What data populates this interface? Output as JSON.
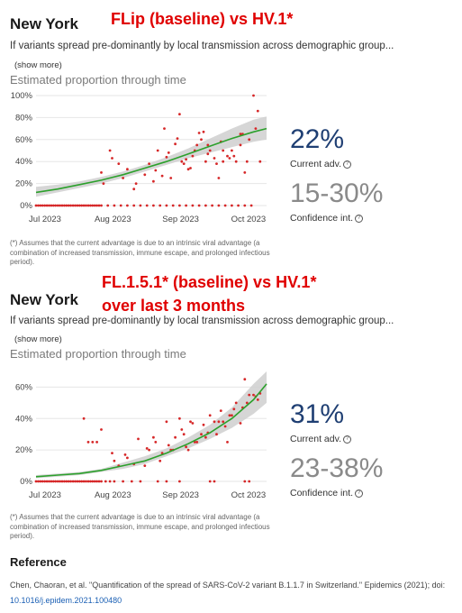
{
  "panels": [
    {
      "location": "New York",
      "overlay_title": "FLip (baseline) vs HV.1*",
      "description": "If variants spread pre-dominantly by local transmission across demographic group...",
      "show_more": "(show more)",
      "section_title": "Estimated proportion through time",
      "current_adv_value": "22%",
      "current_adv_label": "Current adv.",
      "confidence_value": "15-30%",
      "confidence_label": "Confidence int.",
      "info_icon": "?",
      "footnote": "(*) Assumes that the current advantage is due to an intrinsic viral advantage (a combination of increased transmission, immune escape, and prolonged infectious period)."
    },
    {
      "location": "New York",
      "overlay_title_lines": [
        "FL.1.5.1* (baseline) vs HV.1*",
        "over last 3 months"
      ],
      "description": "If variants spread pre-dominantly by local transmission across demographic group...",
      "show_more": "(show more)",
      "section_title": "Estimated proportion through time",
      "current_adv_value": "31%",
      "current_adv_label": "Current adv.",
      "confidence_value": "23-38%",
      "confidence_label": "Confidence int.",
      "info_icon": "?",
      "footnote": "(*) Assumes that the current advantage is due to an intrinsic viral advantage (a combination of increased transmission, immune escape, and prolonged infectious period)."
    }
  ],
  "reference": {
    "heading": "Reference",
    "citation": "Chen, Chaoran, et al. \"Quantification of the spread of SARS-CoV-2 variant B.1.1.7 in Switzerland.\" Epidemics (2021); doi:",
    "doi": "10.1016/j.epidem.2021.100480"
  },
  "colors": {
    "fit_line": "#2ca02c",
    "band": "#cfcfcf",
    "points": "#d62728",
    "adv_value": "#1f3f73",
    "conf_value": "#8a8a8a",
    "overlay_text": "#e00000"
  },
  "chart_data": [
    {
      "type": "scatter",
      "title": "Estimated proportion through time",
      "x_ticks": [
        "Jul 2023",
        "Aug 2023",
        "Sep 2023",
        "Oct 2023"
      ],
      "x_domain": [
        0,
        106
      ],
      "y_ticks": [
        "0%",
        "20%",
        "40%",
        "60%",
        "80%",
        "100%"
      ],
      "ylim": [
        0,
        1
      ],
      "grid": true,
      "fit": {
        "x": [
          0,
          10,
          20,
          30,
          40,
          50,
          60,
          70,
          80,
          90,
          100,
          106
        ],
        "y": [
          0.12,
          0.15,
          0.19,
          0.23,
          0.28,
          0.34,
          0.4,
          0.47,
          0.54,
          0.61,
          0.67,
          0.7
        ],
        "lower": [
          0.08,
          0.12,
          0.16,
          0.2,
          0.25,
          0.31,
          0.37,
          0.43,
          0.48,
          0.53,
          0.58,
          0.6
        ],
        "upper": [
          0.17,
          0.19,
          0.22,
          0.26,
          0.31,
          0.37,
          0.44,
          0.52,
          0.61,
          0.7,
          0.78,
          0.81
        ]
      },
      "points": {
        "x": [
          0,
          1,
          2,
          3,
          4,
          5,
          6,
          7,
          8,
          9,
          10,
          11,
          12,
          13,
          14,
          15,
          16,
          17,
          18,
          19,
          20,
          21,
          22,
          23,
          24,
          25,
          26,
          27,
          28,
          29,
          30,
          33,
          36,
          39,
          42,
          45,
          48,
          51,
          54,
          57,
          60,
          63,
          66,
          69,
          72,
          75,
          78,
          81,
          84,
          87,
          90,
          93,
          96,
          99,
          30,
          34,
          38,
          42,
          46,
          50,
          54,
          56,
          60,
          62,
          64,
          66,
          68,
          70,
          72,
          74,
          76,
          78,
          80,
          82,
          84,
          86,
          88,
          90,
          92,
          94,
          96,
          98,
          100,
          102,
          31,
          35,
          40,
          45,
          55,
          58,
          65,
          67,
          71,
          73,
          77,
          79,
          83,
          85,
          89,
          91,
          95,
          97,
          101,
          103,
          52,
          59,
          61,
          69,
          75,
          79,
          86,
          94
        ],
        "y": [
          0,
          0,
          0,
          0,
          0,
          0,
          0,
          0,
          0,
          0,
          0,
          0,
          0,
          0,
          0,
          0,
          0,
          0,
          0,
          0,
          0,
          0,
          0,
          0,
          0,
          0,
          0,
          0,
          0,
          0,
          0,
          0,
          0,
          0,
          0,
          0,
          0,
          0,
          0,
          0,
          0,
          0,
          0,
          0,
          0,
          0,
          0,
          0,
          0,
          0,
          0,
          0,
          0,
          0,
          0.3,
          0.5,
          0.38,
          0.33,
          0.2,
          0.28,
          0.22,
          0.5,
          0.44,
          0.25,
          0.56,
          0.83,
          0.38,
          0.33,
          0.45,
          0.55,
          0.6,
          0.4,
          0.5,
          0.43,
          0.25,
          0.4,
          0.45,
          0.5,
          0.4,
          0.55,
          0.3,
          0.6,
          1.0,
          0.86,
          0.2,
          0.43,
          0.25,
          0.15,
          0.32,
          0.27,
          0.61,
          0.4,
          0.34,
          0.5,
          0.67,
          0.47,
          0.38,
          0.58,
          0.43,
          0.45,
          0.65,
          0.4,
          0.7,
          0.4,
          0.38,
          0.7,
          0.48,
          0.42,
          0.66,
          0.55,
          0.5,
          0.65
        ]
      }
    },
    {
      "type": "scatter",
      "title": "Estimated proportion through time",
      "x_ticks": [
        "Jul 2023",
        "Aug 2023",
        "Sep 2023",
        "Oct 2023"
      ],
      "x_domain": [
        0,
        106
      ],
      "y_ticks": [
        "0%",
        "20%",
        "40%",
        "60%"
      ],
      "ylim": [
        0,
        0.7
      ],
      "grid": true,
      "fit": {
        "x": [
          0,
          10,
          20,
          30,
          40,
          50,
          60,
          70,
          80,
          90,
          100,
          106
        ],
        "y": [
          0.03,
          0.04,
          0.05,
          0.07,
          0.1,
          0.13,
          0.18,
          0.24,
          0.31,
          0.4,
          0.52,
          0.62
        ],
        "lower": [
          0.02,
          0.03,
          0.04,
          0.06,
          0.08,
          0.11,
          0.16,
          0.21,
          0.27,
          0.34,
          0.43,
          0.5
        ],
        "upper": [
          0.04,
          0.05,
          0.06,
          0.08,
          0.12,
          0.16,
          0.21,
          0.28,
          0.36,
          0.47,
          0.62,
          0.7
        ]
      },
      "points": {
        "x": [
          0,
          1,
          2,
          3,
          4,
          5,
          6,
          7,
          8,
          9,
          10,
          11,
          12,
          13,
          14,
          15,
          16,
          17,
          18,
          19,
          20,
          21,
          22,
          23,
          24,
          25,
          26,
          27,
          28,
          29,
          30,
          32,
          34,
          36,
          40,
          44,
          48,
          56,
          60,
          66,
          80,
          82,
          96,
          98,
          22,
          24,
          26,
          28,
          30,
          35,
          38,
          42,
          45,
          50,
          52,
          55,
          58,
          60,
          62,
          64,
          66,
          68,
          70,
          72,
          74,
          76,
          78,
          80,
          82,
          84,
          86,
          88,
          90,
          92,
          94,
          96,
          98,
          100,
          102,
          36,
          41,
          47,
          51,
          54,
          57,
          61,
          63,
          67,
          69,
          71,
          73,
          77,
          79,
          83,
          85,
          87,
          89,
          91,
          95,
          97,
          101,
          103
        ],
        "y": [
          0,
          0,
          0,
          0,
          0,
          0,
          0,
          0,
          0,
          0,
          0,
          0,
          0,
          0,
          0,
          0,
          0,
          0,
          0,
          0,
          0,
          0,
          0,
          0,
          0,
          0,
          0,
          0,
          0,
          0,
          0,
          0,
          0,
          0,
          0,
          0,
          0,
          0,
          0,
          0,
          0,
          0,
          0,
          0,
          0.4,
          0.25,
          0.25,
          0.25,
          0.33,
          0.18,
          0.1,
          0.15,
          0.11,
          0.1,
          0.2,
          0.25,
          0.18,
          0.38,
          0.2,
          0.28,
          0.4,
          0.3,
          0.2,
          0.37,
          0.25,
          0.3,
          0.28,
          0.42,
          0.38,
          0.38,
          0.38,
          0.25,
          0.42,
          0.5,
          0.37,
          0.65,
          0.55,
          0.55,
          0.52,
          0.13,
          0.17,
          0.27,
          0.21,
          0.28,
          0.13,
          0.23,
          0.2,
          0.33,
          0.22,
          0.38,
          0.25,
          0.36,
          0.31,
          0.3,
          0.45,
          0.35,
          0.42,
          0.46,
          0.47,
          0.5,
          0.54,
          0.56
        ]
      }
    }
  ]
}
